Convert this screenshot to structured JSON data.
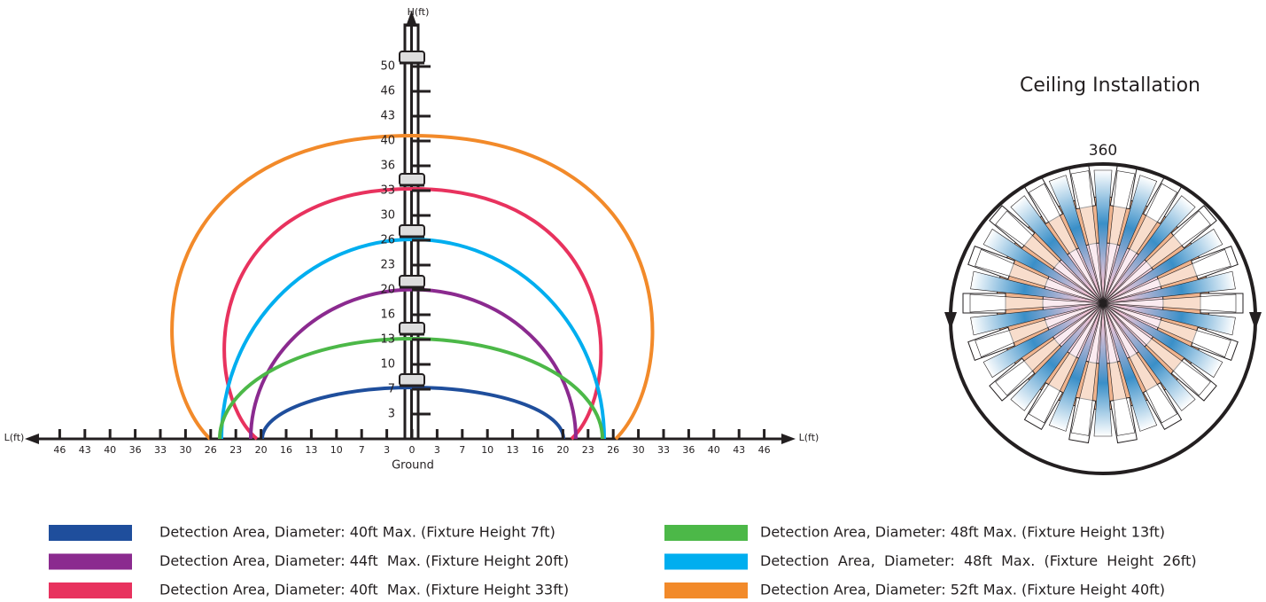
{
  "axes": {
    "h_label": "H(ft)",
    "l_label_left": "L(ft)",
    "l_label_right": "L(ft)",
    "ground_label": "Ground",
    "h_ticks": [
      "50",
      "46",
      "43",
      "40",
      "36",
      "33",
      "30",
      "26",
      "23",
      "20",
      "16",
      "13",
      "10",
      "7",
      "3"
    ],
    "l_ticks": [
      "46",
      "43",
      "40",
      "36",
      "33",
      "30",
      "26",
      "23",
      "20",
      "16",
      "13",
      "10",
      "7",
      "3",
      "0",
      "3",
      "7",
      "10",
      "13",
      "16",
      "20",
      "23",
      "26",
      "30",
      "33",
      "36",
      "40",
      "43",
      "46"
    ]
  },
  "ceiling": {
    "title": "Ceiling Installation",
    "rotation_label": "360"
  },
  "legend": [
    {
      "color": "#1f4e9c",
      "text": "Detection Area, Diameter: 40ft Max. (Fixture Height 7ft)"
    },
    {
      "color": "#8b2a8f",
      "text": "Detection Area, Diameter: 44ft  Max. (Fixture Height 20ft)"
    },
    {
      "color": "#e8325e",
      "text": "Detection Area, Diameter: 40ft  Max. (Fixture Height 33ft)"
    },
    {
      "color": "#4cb848",
      "text": "Detection Area, Diameter: 48ft Max. (Fixture Height 13ft)"
    },
    {
      "color": "#00aeef",
      "text": "Detection  Area,  Diameter:  48ft  Max.  (Fixture  Height  26ft)"
    },
    {
      "color": "#f28a2a",
      "text": "Detection Area, Diameter: 52ft Max. (Fixture Height 40ft)"
    }
  ]
}
